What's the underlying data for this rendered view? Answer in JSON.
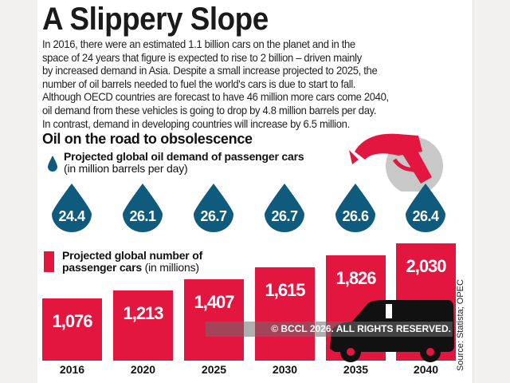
{
  "title": "A Slippery Slope",
  "intro_lines": [
    "In 2016, there were an estimated 1.1 billion cars on the planet and in the",
    "space of 24 years that figure is expected to rise to 2 billion – driven mainly",
    "by increased demand in Asia. Despite a small increase projected to 2025, the",
    "number of oil barrels needed to fuel the world's cars is due to start to fall.",
    "Although OECD countries are forecast to have 46 million more cars come 2040,",
    "oil demand from these vehicles is going to drop by 4.8 million barrels per day.",
    "In contrast, demand in developing countries will increase by 6.5 million."
  ],
  "subtitle": "Oil on the road to obsolescence",
  "watermark": "© BCCL 2026. ALL RIGHTS RESERVED.",
  "source": "Source: Statista; OPEC",
  "colors": {
    "drop": "#0e5b7e",
    "bar": "#e2163f"
  },
  "chart_data": {
    "type": "bar",
    "categories": [
      "2016",
      "2020",
      "2025",
      "2030",
      "2035",
      "2040"
    ],
    "series": [
      {
        "name": "Projected global oil demand of passenger cars",
        "unit": "(in million barrels per day)",
        "values": [
          24.4,
          26.1,
          26.7,
          26.7,
          26.6,
          26.4
        ],
        "labels": [
          "24.4",
          "26.1",
          "26.7",
          "26.7",
          "26.6",
          "26.4"
        ]
      },
      {
        "name": "Projected global number of passenger cars",
        "unit": "(in millions)",
        "values": [
          1076,
          1213,
          1407,
          1615,
          1826,
          2030
        ],
        "labels": [
          "1,076",
          "1,213",
          "1,407",
          "1,615",
          "1,826",
          "2,030"
        ]
      }
    ]
  }
}
